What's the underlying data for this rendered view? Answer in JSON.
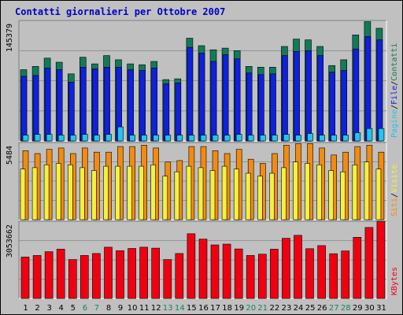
{
  "chart_data": {
    "title": "Contatti giornalieri per Ottobre 2007",
    "type": "bar",
    "x": [
      "1",
      "2",
      "3",
      "4",
      "5",
      "6",
      "7",
      "8",
      "9",
      "10",
      "11",
      "12",
      "13",
      "14",
      "15",
      "16",
      "17",
      "18",
      "19",
      "20",
      "21",
      "22",
      "23",
      "24",
      "25",
      "26",
      "27",
      "28",
      "29",
      "30",
      "31"
    ],
    "weekend_days": [
      "6",
      "7",
      "13",
      "14",
      "20",
      "21",
      "27",
      "28"
    ],
    "colors": {
      "title": "#0000c0",
      "background": "#c0c0c0",
      "contatti": "#127a5a",
      "file": "#0f20e0",
      "pagine": "#22c4f2",
      "visite": "#f28b10",
      "siti": "#f4f040",
      "kbytes": "#f00010",
      "weekday_label": "#000000",
      "weekend_label": "#108860"
    },
    "panels": [
      {
        "id": "hits",
        "label": "145379",
        "ymax": 145379,
        "legend": [
          "Pagine",
          "File",
          "Contatti"
        ],
        "legend_colors": [
          "#22c4f2",
          "#0f20e0",
          "#127a5a"
        ],
        "series": [
          {
            "name": "Contatti",
            "values": [
              86000,
              90000,
              100000,
              95000,
              81000,
              101000,
              93000,
              103000,
              98000,
              93000,
              92000,
              96000,
              74000,
              75000,
              124000,
              115000,
              110000,
              112000,
              109000,
              90000,
              89000,
              89000,
              114000,
              123000,
              122000,
              114000,
              91000,
              98000,
              128000,
              144000,
              136000
            ]
          },
          {
            "name": "File",
            "values": [
              78000,
              79000,
              88000,
              86000,
              71000,
              89000,
              87000,
              89000,
              89000,
              86000,
              85000,
              88000,
              69000,
              70000,
              113000,
              106000,
              96000,
              104000,
              99000,
              82000,
              80000,
              81000,
              103000,
              108000,
              109000,
              103000,
              83000,
              85000,
              111000,
              126000,
              122000
            ]
          },
          {
            "name": "Pagine",
            "values": [
              7000,
              8000,
              8000,
              7000,
              7000,
              8000,
              7000,
              8000,
              17000,
              7000,
              7000,
              7000,
              7000,
              7000,
              7000,
              7000,
              7000,
              7000,
              8000,
              7000,
              7000,
              7000,
              8000,
              7000,
              9000,
              7000,
              7000,
              7000,
              10000,
              15000,
              15000
            ]
          }
        ]
      },
      {
        "id": "visits",
        "label": "5484",
        "ymax": 5484,
        "legend": [
          "Siti",
          "Visite"
        ],
        "legend_colors": [
          "#f28b10",
          "#f4f040"
        ],
        "series": [
          {
            "name": "Visite",
            "values": [
              4900,
              4700,
              5000,
              5100,
              4700,
              5100,
              4800,
              4800,
              5200,
              5200,
              5300,
              5100,
              4100,
              4200,
              5200,
              5200,
              4900,
              4700,
              5000,
              4300,
              4000,
              4700,
              5300,
              5400,
              5400,
              5100,
              4600,
              4800,
              5200,
              5300,
              4800
            ]
          },
          {
            "name": "Siti",
            "values": [
              3600,
              3700,
              3900,
              4000,
              3900,
              3700,
              3500,
              3800,
              3800,
              3800,
              3800,
              3900,
              3100,
              3400,
              3800,
              3700,
              3500,
              3800,
              3600,
              3300,
              3100,
              3300,
              3700,
              4100,
              4000,
              3900,
              3500,
              3400,
              3900,
              4100,
              3600
            ]
          }
        ]
      },
      {
        "id": "kbytes",
        "label": "3053662",
        "ymax": 3053662,
        "legend": [
          "KBytes"
        ],
        "legend_colors": [
          "#f00010"
        ],
        "series": [
          {
            "name": "KBytes",
            "values": [
              1640000,
              1700000,
              1850000,
              1950000,
              1540000,
              1700000,
              1780000,
              2030000,
              1890000,
              1980000,
              2030000,
              1990000,
              1540000,
              1780000,
              2560000,
              2350000,
              2120000,
              2150000,
              1960000,
              1700000,
              1750000,
              1950000,
              2380000,
              2500000,
              1970000,
              2090000,
              1770000,
              1880000,
              2420000,
              2810000,
              3050000
            ]
          }
        ]
      }
    ]
  }
}
